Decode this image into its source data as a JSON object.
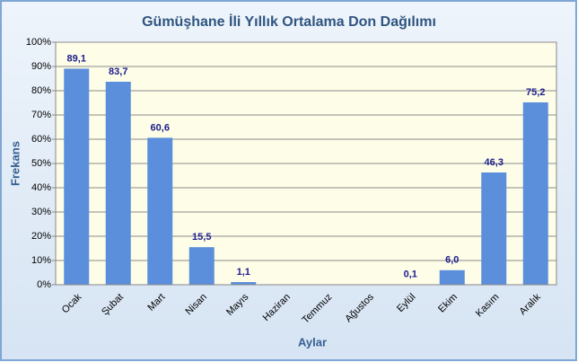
{
  "chart_data": {
    "type": "bar",
    "title": "Gümüşhane İli Yıllık Ortalama Don Dağılımı",
    "x_label": "Aylar",
    "y_label": "Frekans",
    "categories": [
      "Ocak",
      "Şubat",
      "Mart",
      "Nisan",
      "Mayıs",
      "Haziran",
      "Temmuz",
      "Ağustos",
      "Eylül",
      "Ekim",
      "Kasım",
      "Aralık"
    ],
    "values": [
      89.1,
      83.7,
      60.6,
      15.5,
      1.1,
      null,
      null,
      null,
      0.1,
      6.0,
      46.3,
      75.2
    ],
    "value_labels": [
      "89,1",
      "83,7",
      "60,6",
      "15,5",
      "1,1",
      null,
      null,
      null,
      "0,1",
      "6,0",
      "46,3",
      "75,2"
    ],
    "color": "#5b8fdc",
    "ylim": [
      0,
      100
    ],
    "yticks": [
      {
        "value": 0,
        "label": "0%"
      },
      {
        "value": 10,
        "label": "10%"
      },
      {
        "value": 20,
        "label": "20%"
      },
      {
        "value": 30,
        "label": "30%"
      },
      {
        "value": 40,
        "label": "40%"
      },
      {
        "value": 50,
        "label": "50%"
      },
      {
        "value": 60,
        "label": "60%"
      },
      {
        "value": 70,
        "label": "70%"
      },
      {
        "value": 80,
        "label": "80%"
      },
      {
        "value": 90,
        "label": "90%"
      },
      {
        "value": 100,
        "label": "100%"
      }
    ],
    "grid": true
  }
}
